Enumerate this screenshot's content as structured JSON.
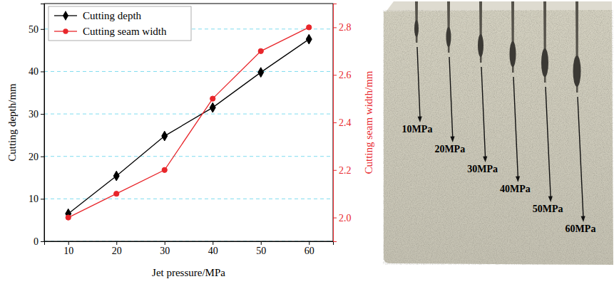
{
  "chart_data": {
    "type": "line",
    "x_label": "Jet pressure/MPa",
    "y_label": "Cutting depth/mm",
    "y2_label": "Cutting seam width/mm",
    "x": [
      10,
      20,
      30,
      40,
      50,
      60
    ],
    "series": [
      {
        "name": "Cutting depth",
        "color": "#000000",
        "marker": "diamond",
        "line_style": "solid",
        "values": [
          6.5,
          15.4,
          24.8,
          31.5,
          39.8,
          47.6
        ]
      },
      {
        "name": "Cutting seam width",
        "color": "#e8262b",
        "marker": "circle",
        "line_style": "solid",
        "axis": "y2",
        "values": [
          2.0,
          2.1,
          2.2,
          2.5,
          2.7,
          2.8
        ]
      }
    ],
    "xlim": [
      5,
      65
    ],
    "xticks": [
      10,
      20,
      30,
      40,
      50,
      60
    ],
    "ylim": [
      0,
      56
    ],
    "yticks": [
      0,
      10,
      20,
      30,
      40,
      50
    ],
    "y2lim": [
      1.9,
      2.9
    ],
    "y2ticks": [
      {
        "value": 2.0,
        "label": "2.0"
      },
      2.2,
      2.4,
      2.6,
      2.8
    ],
    "grid": true,
    "legend": "upper left"
  },
  "photo": {
    "labels": [
      "10MPa",
      "20MPa",
      "30MPa",
      "40MPa",
      "50MPa",
      "60MPa"
    ]
  }
}
